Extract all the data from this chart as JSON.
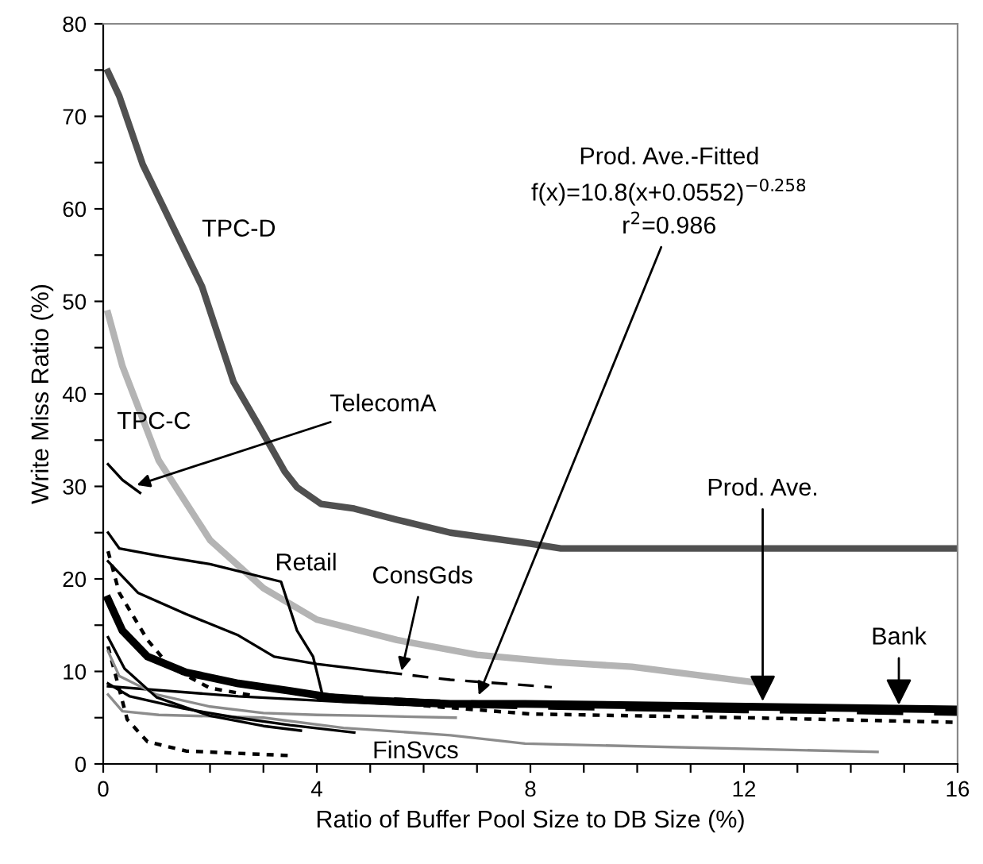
{
  "chart_data": {
    "type": "line",
    "xlabel": "Ratio of Buffer Pool Size to DB Size (%)",
    "ylabel": "Write Miss Ratio (%)",
    "xlim": [
      0,
      16
    ],
    "ylim": [
      0,
      80
    ],
    "xticks": [
      0,
      {
        "value": 1,
        "label": null
      },
      {
        "value": 2,
        "label": null
      },
      {
        "value": 3,
        "label": null
      },
      4,
      {
        "value": 5,
        "label": null
      },
      {
        "value": 6,
        "label": null
      },
      {
        "value": 7,
        "label": null
      },
      8,
      {
        "value": 9,
        "label": null
      },
      {
        "value": 10,
        "label": null
      },
      {
        "value": 11,
        "label": null
      },
      12,
      {
        "value": 13,
        "label": null
      },
      {
        "value": 14,
        "label": null
      },
      {
        "value": 15,
        "label": null
      },
      16
    ],
    "yticks": [
      0,
      {
        "value": 5,
        "label": null
      },
      10,
      {
        "value": 15,
        "label": null
      },
      20,
      {
        "value": 25,
        "label": null
      },
      30,
      {
        "value": 35,
        "label": null
      },
      40,
      {
        "value": 45,
        "label": null
      },
      50,
      {
        "value": 55,
        "label": null
      },
      60,
      {
        "value": 65,
        "label": null
      },
      70,
      {
        "value": 75,
        "label": null
      },
      80
    ],
    "grid": false,
    "marker": "none",
    "series": [
      {
        "color": "#505050",
        "line_style": "solid",
        "x": [
          0.09,
          0.3,
          0.74,
          1.85,
          2.44,
          2.9,
          3.4,
          3.63,
          4.08,
          4.7,
          5.5,
          6.5,
          8.0,
          8.57,
          16
        ],
        "values": [
          74.8,
          72.2,
          64.8,
          51.6,
          41.3,
          36.7,
          31.6,
          29.9,
          28.1,
          27.6,
          26.4,
          25.0,
          23.8,
          23.3,
          23.3
        ]
      },
      {
        "color": "#b4b4b4",
        "line_style": "solid",
        "x": [
          0.09,
          0.36,
          1.04,
          2.0,
          3.0,
          4.0,
          5.5,
          7.0,
          8.5,
          9.9,
          12.35
        ],
        "values": [
          48.7,
          43.0,
          32.8,
          24.2,
          19.0,
          15.6,
          13.4,
          11.8,
          11.0,
          10.5,
          8.7
        ]
      },
      {
        "color": "#000000",
        "line_style": "solid",
        "x": [
          0.09,
          0.36,
          0.69
        ],
        "values": [
          32.4,
          30.7,
          29.3
        ]
      },
      {
        "color": "#000000",
        "line_style": "solid",
        "x": [
          0.09,
          0.3,
          1.04,
          2.0,
          3.33,
          3.63,
          3.93,
          4.1,
          4.4
        ],
        "values": [
          25.0,
          23.3,
          22.5,
          21.6,
          19.7,
          14.4,
          11.6,
          7.6,
          6.8
        ]
      },
      {
        "color": "#000000",
        "line_style": "solid",
        "x": [
          0.09,
          0.65,
          1.55,
          2.53,
          3.2,
          4.0,
          5.3
        ],
        "values": [
          21.9,
          18.5,
          16.2,
          13.9,
          11.6,
          10.8,
          9.9
        ]
      },
      {
        "color": "#000000",
        "line_style": "dashed",
        "x": [
          5.3,
          6.5,
          8.4
        ],
        "values": [
          9.9,
          9.1,
          8.3
        ]
      },
      {
        "color": "#000000",
        "line_style": "solid",
        "x": [
          0.09,
          0.36,
          0.83,
          1.55,
          2.53,
          3.5,
          4.5,
          6.5,
          7.9,
          16
        ],
        "values": [
          17.8,
          14.4,
          11.6,
          9.9,
          8.7,
          7.9,
          7.0,
          6.5,
          6.5,
          5.9
        ]
      },
      {
        "color": "#000000",
        "line_style": "dashed",
        "x": [
          4.0,
          6.0,
          8.0,
          10.0,
          12.0,
          14.0,
          16.0
        ],
        "values": [
          7.3,
          6.6,
          6.3,
          6.1,
          5.9,
          5.8,
          5.6
        ]
      },
      {
        "color": "#000000",
        "line_style": "solid",
        "x": [
          0.09,
          2.53,
          4.5,
          6.0
        ],
        "values": [
          8.4,
          7.3,
          6.7,
          6.3
        ]
      },
      {
        "color": "#000000",
        "line_style": "dotted",
        "x": [
          6.0,
          8.0,
          12.0,
          16.0
        ],
        "values": [
          6.3,
          5.4,
          5.0,
          4.5
        ]
      },
      {
        "color": "#000000",
        "line_style": "dotted",
        "x": [
          0.09,
          0.3,
          0.83,
          1.25,
          2.0,
          2.8
        ],
        "values": [
          23.0,
          18.5,
          13.4,
          10.5,
          8.2,
          7.4
        ]
      },
      {
        "color": "#000000",
        "line_style": "dotted",
        "x": [
          0.09,
          0.45,
          0.83,
          1.55,
          3.5
        ],
        "values": [
          12.7,
          4.8,
          2.4,
          1.4,
          0.9
        ]
      },
      {
        "color": "#8c8c8c",
        "line_style": "solid",
        "x": [
          0.09,
          0.36,
          1.04,
          3.0,
          4.5,
          6.5,
          7.9,
          14.5
        ],
        "values": [
          7.5,
          5.7,
          5.3,
          5.0,
          3.9,
          3.1,
          2.2,
          1.3
        ]
      },
      {
        "color": "#8c8c8c",
        "line_style": "solid",
        "x": [
          0.09,
          0.3,
          1.0,
          2.0,
          3.0,
          4.0,
          5.0,
          6.6
        ],
        "values": [
          12.2,
          9.5,
          7.5,
          6.2,
          5.5,
          5.3,
          5.2,
          5.0
        ]
      },
      {
        "color": "#000000",
        "line_style": "solid",
        "x": [
          0.09,
          0.4,
          1.0,
          2.0,
          3.0,
          3.7
        ],
        "values": [
          13.7,
          10.3,
          7.2,
          5.2,
          4.1,
          3.6
        ]
      },
      {
        "color": "#000000",
        "line_style": "solid",
        "x": [
          0.09,
          0.5,
          1.5,
          2.5,
          3.5,
          4.7
        ],
        "values": [
          8.7,
          7.3,
          6.0,
          5.0,
          4.2,
          3.4
        ]
      }
    ],
    "annotations": [
      {
        "text": "TPC-D",
        "x": 1.85,
        "y": 51.6
      },
      {
        "text": "TPC-C",
        "x": 1.04,
        "y": 32.8
      },
      {
        "text": "TelecomA",
        "x": 0.55,
        "y": 30.0
      },
      {
        "text": "Retail",
        "x": 3.33,
        "y": 19.7
      },
      {
        "text": "ConsGds",
        "x": 5.57,
        "y": 9.6
      },
      "Prod. Ave.-Fitted",
      "f(x)=10.8(x+0.0552)$^{−0.258}$",
      {
        "text": "r$^{2}$=0.986",
        "x": 7.0,
        "y": 7.0
      },
      {
        "text": "Prod. Ave.",
        "x": 12.35,
        "y": 6.3
      },
      {
        "text": "Bank",
        "x": 14.9,
        "y": 5.9
      },
      {
        "text": "FinSvcs",
        "x": 5.8,
        "y": 3.2
      }
    ]
  }
}
